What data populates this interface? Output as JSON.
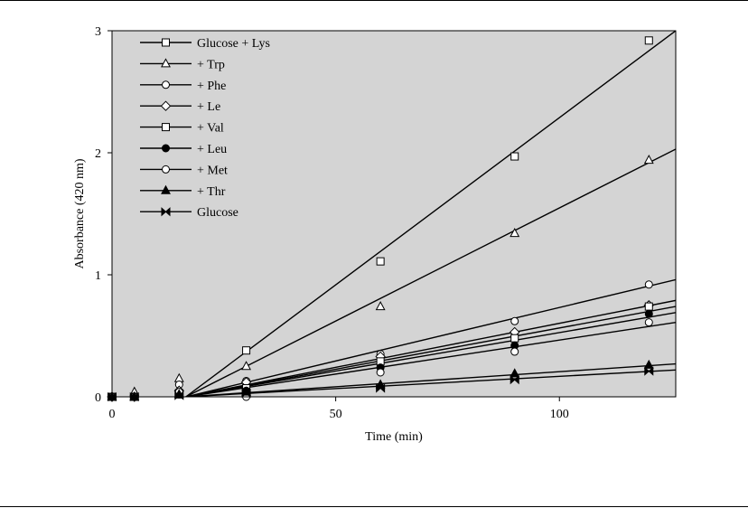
{
  "chart_data": {
    "type": "scatter",
    "xlabel": "Time (min)",
    "ylabel": "Absorbance (420 nm)",
    "xlim": [
      0,
      126
    ],
    "ylim": [
      0,
      3
    ],
    "xticks": [
      0,
      50,
      100
    ],
    "yticks": [
      0,
      1,
      2,
      3
    ],
    "plot_background": "#d4d4d4",
    "grid": false,
    "legend_position": "top-left",
    "series": [
      {
        "name": "Glucose + Lys",
        "marker": "square-open",
        "x": [
          0,
          5,
          15,
          30,
          60,
          90,
          120
        ],
        "y": [
          0,
          0,
          0.02,
          0.38,
          1.11,
          1.97,
          2.92
        ],
        "fit": [
          [
            16.5,
            0
          ],
          [
            126,
            3.0
          ]
        ]
      },
      {
        "name": "+ Trp",
        "marker": "triangle-open",
        "x": [
          0,
          5,
          15,
          30,
          60,
          90,
          120
        ],
        "y": [
          0,
          0.04,
          0.15,
          0.25,
          0.74,
          1.34,
          1.94
        ],
        "fit": [
          [
            16.5,
            0
          ],
          [
            126,
            2.03
          ]
        ]
      },
      {
        "name": "+ Phe",
        "marker": "circle-open",
        "x": [
          0,
          5,
          15,
          30,
          60,
          90,
          120
        ],
        "y": [
          0,
          0,
          0.1,
          0.13,
          0.35,
          0.62,
          0.92
        ],
        "fit": [
          [
            16.5,
            0
          ],
          [
            126,
            0.96
          ]
        ]
      },
      {
        "name": "+ Le",
        "marker": "diamond-open",
        "x": [
          0,
          5,
          15,
          30,
          60,
          90,
          120
        ],
        "y": [
          0,
          0,
          0.05,
          0.12,
          0.33,
          0.53,
          0.75
        ],
        "fit": [
          [
            16.5,
            0
          ],
          [
            126,
            0.79
          ]
        ]
      },
      {
        "name": "+ Val",
        "marker": "square-open",
        "x": [
          0,
          5,
          15,
          30,
          60,
          90,
          120
        ],
        "y": [
          0,
          0,
          0.03,
          0.07,
          0.29,
          0.48,
          0.74
        ],
        "fit": [
          [
            16.5,
            0
          ],
          [
            126,
            0.74
          ]
        ]
      },
      {
        "name": "+ Leu",
        "marker": "circle-filled",
        "x": [
          0,
          5,
          15,
          30,
          60,
          90,
          120
        ],
        "y": [
          0,
          0,
          0.02,
          0.05,
          0.24,
          0.42,
          0.68
        ],
        "fit": [
          [
            16.5,
            0
          ],
          [
            126,
            0.69
          ]
        ]
      },
      {
        "name": "+ Met",
        "marker": "circle-open",
        "x": [
          0,
          5,
          15,
          30,
          60,
          90,
          120
        ],
        "y": [
          0,
          0,
          0.04,
          0,
          0.2,
          0.37,
          0.61
        ],
        "fit": [
          [
            16.5,
            0
          ],
          [
            126,
            0.61
          ]
        ]
      },
      {
        "name": "+ Thr",
        "marker": "triangle-filled",
        "x": [
          0,
          5,
          15,
          30,
          60,
          90,
          120
        ],
        "y": [
          0,
          0,
          0.02,
          0.04,
          0.1,
          0.19,
          0.26
        ],
        "fit": [
          [
            16.5,
            0
          ],
          [
            126,
            0.27
          ]
        ]
      },
      {
        "name": "Glucose",
        "marker": "bowtie",
        "x": [
          0,
          5,
          15,
          30,
          60,
          90,
          120
        ],
        "y": [
          0,
          0,
          0.01,
          0.03,
          0.07,
          0.14,
          0.21
        ],
        "fit": [
          [
            16.5,
            0
          ],
          [
            126,
            0.22
          ]
        ]
      }
    ]
  }
}
